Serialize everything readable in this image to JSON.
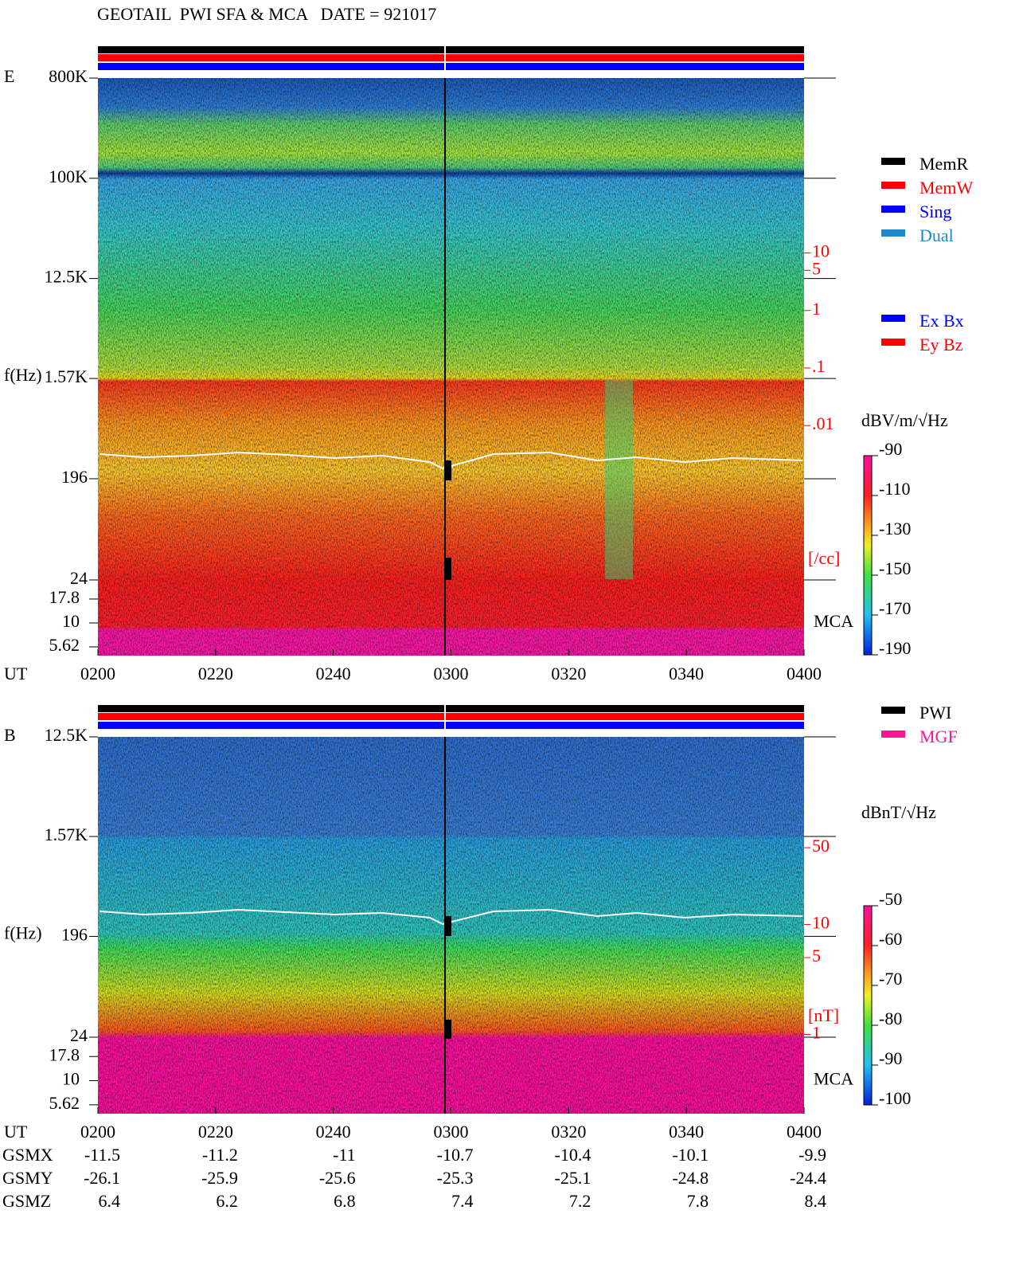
{
  "chart_data": [
    {
      "type": "spectrogram",
      "title": "GEOTAIL  PWI SFA & MCA   DATE = 921017",
      "panel_label": "E",
      "y_label": "f(Hz)",
      "x_label": "UT",
      "mca_label": "MCA",
      "log_y": true,
      "ylim": [
        24,
        800000
      ],
      "yticks": [
        {
          "value": 800000,
          "label": "800K"
        },
        {
          "value": 100000,
          "label": "100K"
        },
        {
          "value": 12500,
          "label": "12.5K"
        },
        {
          "value": 1570,
          "label": "1.57K"
        },
        196,
        24
      ],
      "mca_ylim": [
        4.55,
        28.2
      ],
      "mca_yticks": [
        17.8,
        10,
        5.62
      ],
      "xlim": [
        120,
        240
      ],
      "xticks": [
        {
          "value": 120,
          "label": "0200"
        },
        {
          "value": 140,
          "label": "0220"
        },
        {
          "value": 160,
          "label": "0240"
        },
        {
          "value": 180,
          "label": "0300"
        },
        {
          "value": 200,
          "label": "0320"
        },
        {
          "value": 220,
          "label": "0340"
        },
        {
          "value": 240,
          "label": "0400"
        }
      ],
      "y2lim": [
        1e-06,
        11000
      ],
      "y2_log": true,
      "y2_color": "#ff0000",
      "y2ticks": [
        10,
        5,
        1,
        {
          "value": 0.1,
          "label": ".1"
        },
        {
          "value": 0.01,
          "label": ".01"
        }
      ],
      "y2_label": "[/cc]",
      "colorbar": {
        "label": "dBV/m/√Hz",
        "clim": [
          -190,
          -90
        ],
        "ticks": [
          -90,
          -110,
          -130,
          -150,
          -170,
          -190
        ]
      },
      "legend": [
        [
          {
            "name": "MemR",
            "color": "#000000"
          },
          {
            "name": "MemW",
            "color": "#ff0000"
          },
          {
            "name": "Sing",
            "color": "#0000ff"
          },
          {
            "name": "Dual",
            "color": "#1e88c8"
          }
        ],
        [
          {
            "name": "Ex Bx",
            "color": "#0000ff"
          },
          {
            "name": "Ey Bz",
            "color": "#ff0000"
          }
        ]
      ]
    },
    {
      "type": "spectrogram",
      "panel_label": "B",
      "y_label": "f(Hz)",
      "x_label": "UT",
      "mca_label": "MCA",
      "log_y": true,
      "ylim": [
        24,
        12500
      ],
      "yticks": [
        {
          "value": 12500,
          "label": "12.5K"
        },
        {
          "value": 1570,
          "label": "1.57K"
        },
        196,
        24
      ],
      "mca_ylim": [
        4.55,
        28.2
      ],
      "mca_yticks": [
        17.8,
        10,
        5.62
      ],
      "xlim": [
        120,
        240
      ],
      "xticks": [
        {
          "value": 120,
          "label": "0200"
        },
        {
          "value": 140,
          "label": "0220"
        },
        {
          "value": 160,
          "label": "0240"
        },
        {
          "value": 180,
          "label": "0300"
        },
        {
          "value": 200,
          "label": "0320"
        },
        {
          "value": 220,
          "label": "0340"
        },
        {
          "value": 240,
          "label": "0400"
        }
      ],
      "y2lim": [
        0.19,
        510
      ],
      "y2_log": true,
      "y2_color": "#ff0000",
      "y2ticks": [
        50,
        10,
        5,
        1
      ],
      "y2_label": "[nT]",
      "colorbar": {
        "label": "dBnT/√Hz",
        "clim": [
          -100,
          -50
        ],
        "ticks": [
          -50,
          -60,
          -70,
          -80,
          -90,
          -100
        ]
      },
      "legend": [
        [
          {
            "name": "PWI",
            "color": "#000000"
          },
          {
            "name": "MGF",
            "color": "#ff1493"
          }
        ]
      ],
      "orbit": [
        {
          "label": "GSMX",
          "values": [
            -11.5,
            -11.2,
            -11.0,
            -10.7,
            -10.4,
            -10.1,
            -9.9
          ]
        },
        {
          "label": "GSMY",
          "values": [
            -26.1,
            -25.9,
            -25.6,
            -25.3,
            -25.1,
            -24.8,
            -24.4
          ]
        },
        {
          "label": "GSMZ",
          "values": [
            6.4,
            6.2,
            6.8,
            7.4,
            7.2,
            7.8,
            8.4
          ]
        }
      ]
    }
  ]
}
